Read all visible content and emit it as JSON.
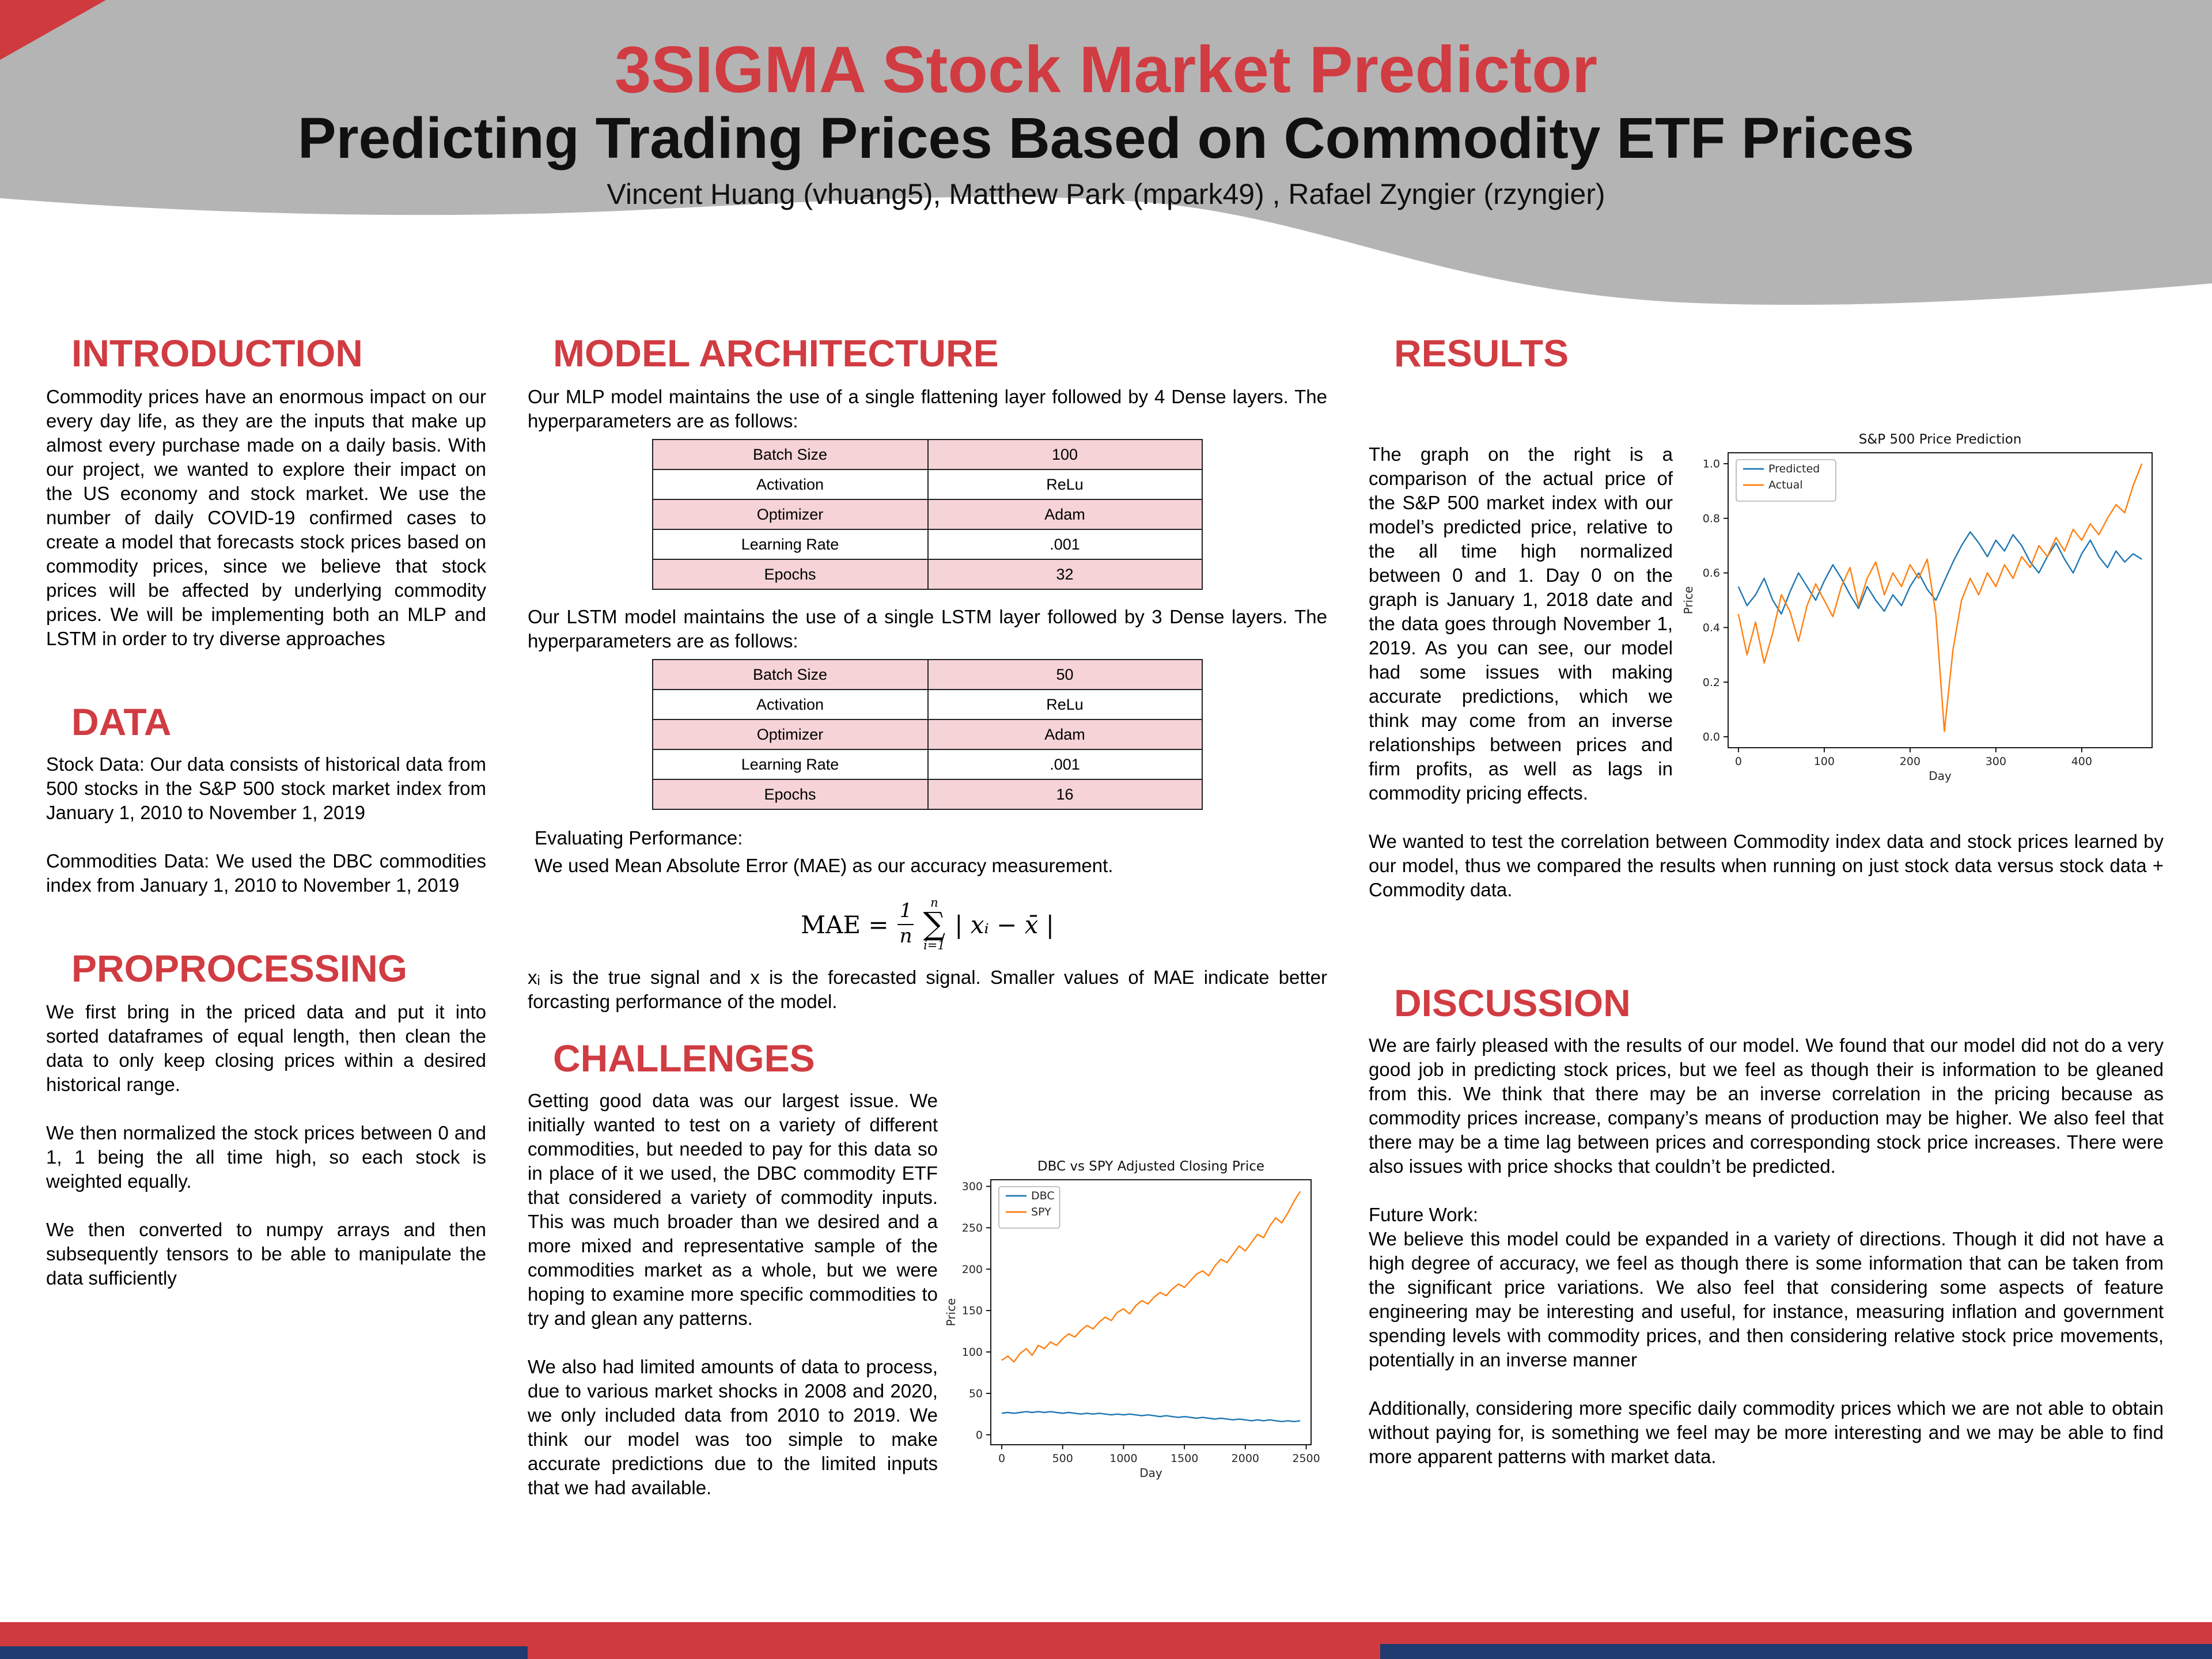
{
  "header": {
    "title": "3SIGMA Stock Market Predictor",
    "subtitle": "Predicting Trading Prices Based on Commodity ETF Prices",
    "authors": "Vincent Huang (vhuang5), Matthew Park (mpark49) , Rafael Zyngier (rzyngier)"
  },
  "colors": {
    "accent_red": "#d03c42",
    "header_gray": "#b4b4b4",
    "footer_red": "#cf3a3f",
    "footer_navy": "#1e3a6e",
    "table_pink": "#f5d3d6",
    "series_blue": "#1f77b4",
    "series_orange": "#ff7f0e"
  },
  "sections": {
    "introduction": {
      "heading": "INTRODUCTION",
      "body": "Commodity prices have an enormous impact on our every day life, as they are the inputs that make up almost every purchase made on a daily basis. With our project, we wanted to explore their impact on the US economy and stock market. We use the number of daily COVID-19 confirmed cases to create a model that forecasts stock prices based on commodity prices, since we believe that stock prices will be affected by underlying commodity prices. We will be implementing both an MLP and LSTM in order to try diverse approaches"
    },
    "data": {
      "heading": "DATA",
      "p1": "Stock Data: Our data consists of historical data from 500 stocks in the S&P 500 stock market index from January 1, 2010 to November 1, 2019",
      "p2": "Commodities Data: We used the DBC commodities index from January 1, 2010 to November 1, 2019"
    },
    "preprocessing": {
      "heading": "PROPROCESSING",
      "p1": "We first bring in the priced data and put it into sorted dataframes of equal length, then clean the data to only keep closing prices within a desired historical range.",
      "p2": "We then normalized the stock prices between 0 and 1, 1 being the all time high, so each stock is weighted equally.",
      "p3": "We then converted to numpy arrays and then subsequently tensors to be able to manipulate the data sufficiently"
    },
    "model_architecture": {
      "heading": "MODEL ARCHITECTURE",
      "mlp_intro": "Our MLP model maintains the use of a single flattening layer followed by 4 Dense layers. The hyperparameters are as follows:",
      "mlp_table": [
        [
          "Batch Size",
          "100"
        ],
        [
          "Activation",
          "ReLu"
        ],
        [
          "Optimizer",
          "Adam"
        ],
        [
          "Learning Rate",
          ".001"
        ],
        [
          "Epochs",
          "32"
        ]
      ],
      "lstm_intro": "Our LSTM model maintains the use of a single LSTM layer followed by 3 Dense layers. The hyperparameters are as follows:",
      "lstm_table": [
        [
          "Batch Size",
          "50"
        ],
        [
          "Activation",
          "ReLu"
        ],
        [
          "Optimizer",
          "Adam"
        ],
        [
          "Learning Rate",
          ".001"
        ],
        [
          "Epochs",
          "16"
        ]
      ],
      "eval_title": "Evaluating Performance:",
      "eval_text": "We used Mean Absolute Error (MAE) as our accuracy measurement.",
      "formula": {
        "lhs": "MAE =",
        "frac_top": "1",
        "frac_bottom": "n",
        "sum_upper": "n",
        "sigma": "∑",
        "sum_lower": "i=1",
        "expr": "| xᵢ − x̄ |"
      },
      "formula_note": "xᵢ is the true signal and x is the forecasted signal. Smaller values of MAE indicate better forcasting performance of the model."
    },
    "challenges": {
      "heading": "CHALLENGES",
      "p1": "Getting good data was our largest issue. We initially wanted to test on a variety of different commodities, but needed to pay for this data so in place of it we used, the DBC commodity ETF that considered a variety of commodity inputs. This was much broader than we desired and a more mixed and representative sample of the commodities market as a whole, but we were hoping to examine more specific commodities to try and glean any patterns.",
      "p2": "We also had limited amounts of data to process, due to various market shocks in 2008 and 2020, we only included data from 2010 to 2019. We think our model was too simple to make accurate predictions due to the limited inputs that we had available."
    },
    "results": {
      "heading": "RESULTS",
      "p1": "The graph on the right is a comparison of the actual price of the S&P 500 market index with our model’s predicted price, relative to the all time high normalized between 0 and 1. Day 0 on the graph is January 1, 2018 date and the data goes through November 1, 2019. As you can see, our model had some issues with making accurate predictions, which we think may come from an inverse relationships between prices and firm profits, as well as lags in commodity pricing effects.",
      "p2": "We wanted to test the correlation between Commodity index data and stock prices learned by our model, thus we compared the results when running on just stock data versus stock data + Commodity data."
    },
    "discussion": {
      "heading": "DISCUSSION",
      "p1": "We are fairly pleased with the results of our model. We found that our model did not do a very good job in predicting stock prices, but we feel as though their is information to be gleaned from this. We think that there may be an inverse correlation in the pricing because as commodity prices increase, company’s means of production may be higher. We also feel that there may be a time lag between prices and corresponding stock price increases. There were also issues with price shocks that couldn’t be predicted.",
      "future_label": "Future Work:",
      "p2": "We believe this model could be expanded in a variety of directions. Though it did not have a high degree of accuracy, we feel as though there is some information that can be taken from the significant price variations. We also feel that considering some aspects of feature engineering may be interesting and useful, for instance, measuring inflation and government spending levels with commodity prices, and then considering relative stock price movements, potentially in an inverse manner",
      "p3": "Additionally, considering more specific daily commodity prices  which we are not able to obtain without paying for, is something we feel may be more interesting and we may be able to find more apparent patterns with market data."
    }
  },
  "chart_data": [
    {
      "type": "line",
      "title": "S&P 500 Price Prediction",
      "xlabel": "Day",
      "ylabel": "Price",
      "xlim": [
        -12,
        482
      ],
      "ylim": [
        -0.04,
        1.04
      ],
      "xticks": [
        "0",
        "100",
        "200",
        "300",
        "400"
      ],
      "yticks": [
        "0.0",
        "0.2",
        "0.4",
        "0.6",
        "0.8",
        "1.0"
      ],
      "x_start": 0,
      "x_step": 10,
      "legend_position": "upper left",
      "grid": false,
      "series": [
        {
          "name": "Predicted",
          "color": "#1f77b4",
          "values": [
            0.55,
            0.48,
            0.52,
            0.58,
            0.5,
            0.45,
            0.53,
            0.6,
            0.55,
            0.5,
            0.57,
            0.63,
            0.58,
            0.52,
            0.47,
            0.55,
            0.5,
            0.46,
            0.52,
            0.48,
            0.55,
            0.6,
            0.54,
            0.5,
            0.57,
            0.64,
            0.7,
            0.75,
            0.71,
            0.66,
            0.72,
            0.68,
            0.74,
            0.7,
            0.64,
            0.6,
            0.66,
            0.71,
            0.65,
            0.6,
            0.67,
            0.72,
            0.66,
            0.62,
            0.68,
            0.64,
            0.67,
            0.65
          ]
        },
        {
          "name": "Actual",
          "color": "#ff7f0e",
          "values": [
            0.45,
            0.3,
            0.42,
            0.27,
            0.38,
            0.52,
            0.46,
            0.35,
            0.48,
            0.56,
            0.5,
            0.44,
            0.55,
            0.62,
            0.48,
            0.58,
            0.64,
            0.52,
            0.6,
            0.55,
            0.63,
            0.58,
            0.65,
            0.45,
            0.02,
            0.32,
            0.5,
            0.58,
            0.52,
            0.6,
            0.55,
            0.63,
            0.58,
            0.66,
            0.62,
            0.7,
            0.66,
            0.73,
            0.68,
            0.76,
            0.72,
            0.78,
            0.74,
            0.8,
            0.85,
            0.82,
            0.92,
            1.0
          ]
        }
      ]
    },
    {
      "type": "line",
      "title": "DBC vs SPY Adjusted Closing Price",
      "xlabel": "Day",
      "ylabel": "Price",
      "xlim": [
        -90,
        2540
      ],
      "ylim": [
        -12,
        308
      ],
      "xticks": [
        "0",
        "500",
        "1000",
        "1500",
        "2000",
        "2500"
      ],
      "yticks": [
        "0",
        "50",
        "100",
        "150",
        "200",
        "250",
        "300"
      ],
      "x_start": 0,
      "x_step": 50,
      "legend_position": "upper left",
      "grid": false,
      "series": [
        {
          "name": "DBC",
          "color": "#1f77b4",
          "values": [
            26,
            27,
            26,
            27,
            28,
            27,
            28,
            27,
            28,
            27,
            26,
            27,
            26,
            25,
            26,
            25,
            26,
            25,
            24,
            25,
            24,
            25,
            24,
            23,
            24,
            23,
            22,
            23,
            22,
            21,
            22,
            21,
            20,
            21,
            20,
            19,
            20,
            19,
            18,
            19,
            18,
            17,
            18,
            17,
            18,
            17,
            16,
            17,
            16,
            17
          ]
        },
        {
          "name": "SPY",
          "color": "#ff7f0e",
          "values": [
            90,
            95,
            88,
            98,
            104,
            96,
            108,
            104,
            112,
            108,
            116,
            122,
            118,
            126,
            132,
            128,
            136,
            142,
            138,
            148,
            152,
            146,
            156,
            162,
            158,
            166,
            172,
            168,
            176,
            182,
            178,
            186,
            194,
            198,
            192,
            204,
            212,
            208,
            218,
            228,
            222,
            232,
            242,
            238,
            252,
            262,
            256,
            268,
            282,
            294
          ]
        }
      ]
    }
  ]
}
